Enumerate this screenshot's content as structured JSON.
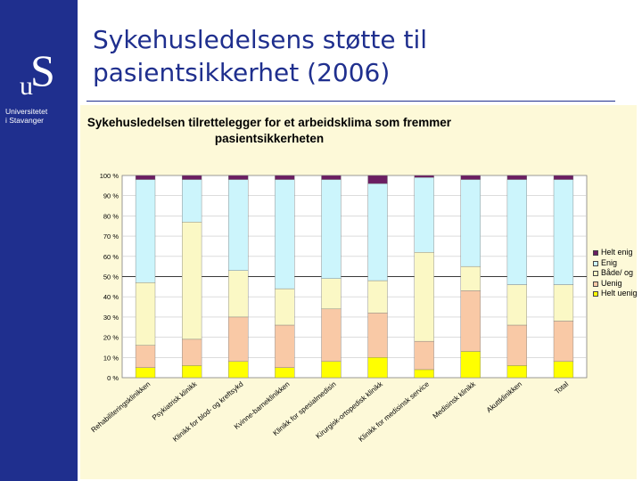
{
  "slide": {
    "title_line1": "Sykehusledelsens støtte til",
    "title_line2": "pasientsikkerhet (2006)"
  },
  "logo": {
    "u": "u",
    "s": "S",
    "text_line1": "Universitetet",
    "text_line2": "i Stavanger"
  },
  "colors": {
    "sidebar": "#1f2f8e",
    "chart_background": "#fdf9d8",
    "title": "#1f2f8e"
  },
  "chart_data": {
    "type": "bar",
    "stacked": "percent",
    "title_line1": "Sykehusledelsen tilrettelegger for et arbeidsklima som fremmer",
    "title_line2": "pasientsikkerheten",
    "categories": [
      "Rehabiliteringsklinikken",
      "Psykiatrisk klinikk",
      "Klinikk for blod- og kreftsykd",
      "Kvinne-barneklinikken",
      "Klinikk for spesialmedisin",
      "Kirurgisk-ortopedisk klinikk",
      "Klinikk for medisinsk service",
      "Medisinsk klinikk",
      "Akuttklinikken",
      "Total"
    ],
    "series": [
      {
        "name": "Helt uenig",
        "color": "#ffff00",
        "values": [
          5,
          6,
          8,
          5,
          8,
          10,
          4,
          13,
          6,
          8
        ]
      },
      {
        "name": "Uenig",
        "color": "#f9c9a6",
        "values": [
          11,
          13,
          22,
          21,
          26,
          22,
          14,
          30,
          20,
          20
        ]
      },
      {
        "name": "Både/ og",
        "color": "#fbf8c5",
        "values": [
          31,
          58,
          23,
          18,
          15,
          16,
          44,
          12,
          20,
          18
        ]
      },
      {
        "name": "Enig",
        "color": "#ccf5fc",
        "values": [
          51,
          21,
          45,
          54,
          49,
          48,
          37,
          43,
          52,
          52
        ]
      },
      {
        "name": "Helt enig",
        "color": "#6b1e62",
        "values": [
          2,
          2,
          2,
          2,
          2,
          4,
          1,
          2,
          2,
          2
        ]
      }
    ],
    "legend_order": [
      "Helt enig",
      "Enig",
      "Både/ og",
      "Uenig",
      "Helt uenig"
    ],
    "ylim": [
      0,
      100
    ],
    "yticks": [
      "0 %",
      "10 %",
      "20 %",
      "30 %",
      "40 %",
      "50 %",
      "60 %",
      "70 %",
      "80 %",
      "90 %",
      "100 %"
    ],
    "grid": true,
    "legend_position": "right"
  }
}
